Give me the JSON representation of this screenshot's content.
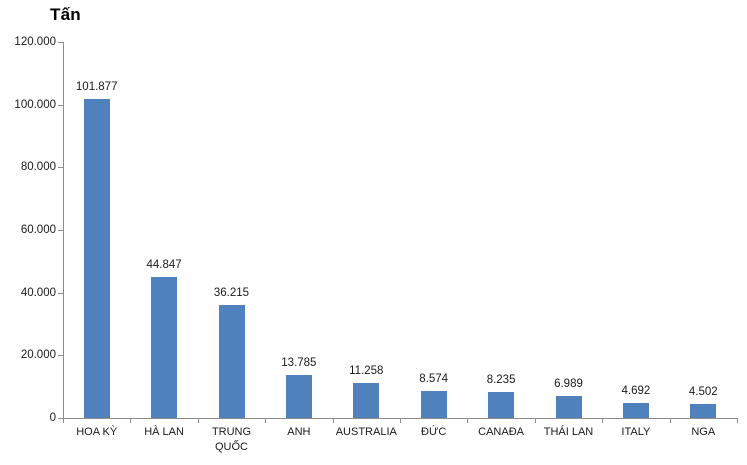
{
  "chart_data": {
    "type": "bar",
    "title": "Tấn",
    "categories": [
      "HOA KỲ",
      "HÀ LAN",
      "TRUNG QUỐC",
      "ANH",
      "AUSTRALIA",
      "ĐỨC",
      "CANAĐA",
      "THÁI LAN",
      "ITALY",
      "NGA"
    ],
    "values": [
      101877,
      44847,
      36215,
      13785,
      11258,
      8574,
      8235,
      6989,
      4692,
      4502
    ],
    "value_labels": [
      "101.877",
      "44.847",
      "36.215",
      "13.785",
      "11.258",
      "8.574",
      "8.235",
      "6.989",
      "4.692",
      "4.502"
    ],
    "xlabel": "",
    "ylabel": "",
    "ylim": [
      0,
      120000
    ],
    "yticks": [
      0,
      20000,
      40000,
      60000,
      80000,
      100000,
      120000
    ],
    "ytick_labels": [
      "0",
      "20.000",
      "40.000",
      "60.000",
      "80.000",
      "100.000",
      "120.000"
    ],
    "grid": false,
    "legend": "none",
    "colors": {
      "bar": "#4F81BD",
      "axis": "#8C8C8C",
      "text": "#1A1A1A",
      "title": "#000000",
      "background": "#FFFFFF"
    }
  }
}
